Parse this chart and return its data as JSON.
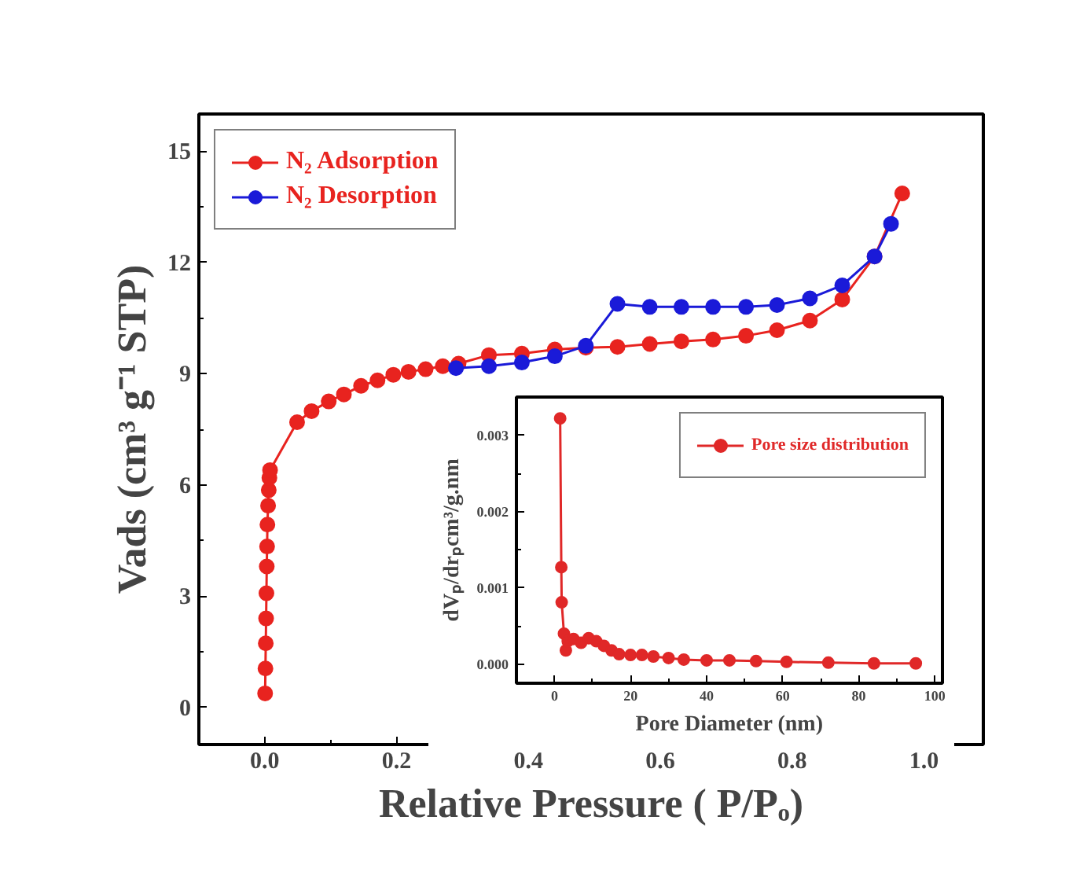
{
  "chart_data": [
    {
      "type": "line",
      "xlabel": "Relative Pressure ( P/Pₒ)",
      "ylabel": "Vads (cm³ g⁻¹ STP)",
      "marker": "circle",
      "legend": "top left",
      "grid": false,
      "xlim": [
        -0.1,
        1.09
      ],
      "ylim": [
        -1,
        16
      ],
      "xticks": [
        {
          "value": 0,
          "label": "0.0"
        },
        {
          "value": 0.2,
          "label": "0.2"
        },
        {
          "value": 0.4,
          "label": "0.4"
        },
        {
          "value": 0.6,
          "label": "0.6"
        },
        {
          "value": 0.8,
          "label": "0.8"
        },
        {
          "value": 1,
          "label": "1.0"
        }
      ],
      "yticks": [
        0,
        3,
        6,
        9,
        12,
        15
      ],
      "series": [
        {
          "name": "N₂ Adsorption",
          "color": "#e8231f",
          "x": [
            0.0005,
            0.001,
            0.0015,
            0.002,
            0.0025,
            0.003,
            0.0035,
            0.004,
            0.005,
            0.006,
            0.007,
            0.008,
            0.049,
            0.071,
            0.097,
            0.12,
            0.146,
            0.171,
            0.195,
            0.218,
            0.244,
            0.27,
            0.294,
            0.34,
            0.39,
            0.44,
            0.487,
            0.535,
            0.584,
            0.632,
            0.68,
            0.73,
            0.777,
            0.827,
            0.876,
            0.925,
            0.967
          ],
          "values": [
            0.38,
            1.05,
            1.73,
            2.4,
            3.08,
            3.8,
            4.34,
            4.93,
            5.44,
            5.86,
            6.19,
            6.4,
            7.69,
            7.99,
            8.25,
            8.44,
            8.67,
            8.82,
            8.97,
            9.05,
            9.12,
            9.2,
            9.27,
            9.5,
            9.54,
            9.65,
            9.7,
            9.72,
            9.8,
            9.87,
            9.92,
            10.02,
            10.17,
            10.43,
            11.0,
            12.16,
            13.86
          ]
        },
        {
          "name": "N₂ Desorption",
          "color": "#1a1ad8",
          "x": [
            0.29,
            0.34,
            0.39,
            0.44,
            0.487,
            0.535,
            0.584,
            0.632,
            0.68,
            0.73,
            0.777,
            0.827,
            0.876,
            0.925,
            0.95
          ],
          "values": [
            9.15,
            9.2,
            9.3,
            9.47,
            9.75,
            10.88,
            10.8,
            10.8,
            10.8,
            10.8,
            10.85,
            11.03,
            11.38,
            12.16,
            13.04
          ]
        }
      ]
    },
    {
      "type": "line",
      "xlabel": "Pore Diameter (nm)",
      "ylabel": "dVₚ/drₚcm³/g.nm",
      "marker": "circle",
      "legend": "top right",
      "grid": false,
      "xlim": [
        -10,
        102
      ],
      "ylim": [
        -0.00025,
        0.0035
      ],
      "xticks": [
        0,
        20,
        40,
        60,
        80,
        100
      ],
      "yticks": [
        {
          "value": 0,
          "label": "0.000"
        },
        {
          "value": 0.001,
          "label": "0.001"
        },
        {
          "value": 0.002,
          "label": "0.002"
        },
        {
          "value": 0.003,
          "label": "0.003"
        }
      ],
      "series": [
        {
          "name": "Pore size distribution",
          "color": "#e02828",
          "x": [
            1.5,
            1.8,
            1.9,
            2.5,
            3,
            3.5,
            5,
            7,
            9,
            11,
            13,
            15,
            17,
            20,
            23,
            26,
            30,
            34,
            40,
            46,
            53,
            61,
            72,
            84,
            95
          ],
          "values": [
            0.00322,
            0.00127,
            0.00081,
            0.0004,
            0.00018,
            0.0003,
            0.00033,
            0.00028,
            0.00034,
            0.0003,
            0.00024,
            0.00018,
            0.00013,
            0.00012,
            0.00012,
            0.0001,
            8e-05,
            6e-05,
            5e-05,
            5e-05,
            4e-05,
            3e-05,
            2e-05,
            1e-05,
            1e-05
          ]
        }
      ]
    }
  ]
}
